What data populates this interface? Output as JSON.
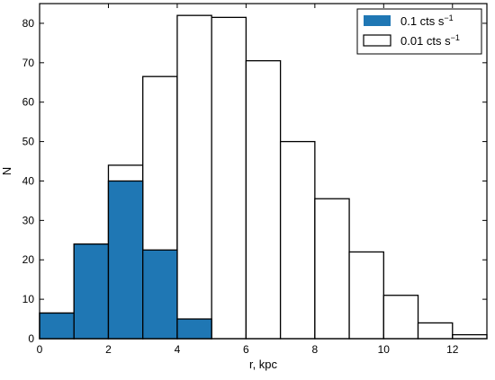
{
  "chart_data": {
    "type": "bar",
    "style": "histogram",
    "xlabel": "r, kpc",
    "ylabel": "N",
    "xlim": [
      0,
      13
    ],
    "ylim": [
      0,
      85
    ],
    "x_ticks": [
      0,
      2,
      4,
      6,
      8,
      10,
      12
    ],
    "x_tick_labels": [
      "0",
      "2",
      "4",
      "6",
      "8",
      "10",
      "12"
    ],
    "y_ticks": [
      0,
      10,
      20,
      30,
      40,
      50,
      60,
      70,
      80
    ],
    "y_tick_labels": [
      "0",
      "10",
      "20",
      "30",
      "40",
      "50",
      "60",
      "70",
      "80"
    ],
    "bin_edges": [
      0,
      1,
      2,
      3,
      4,
      5,
      6,
      7,
      8,
      9,
      10,
      11,
      12,
      13
    ],
    "series": [
      {
        "name": "0.1 cts s⁻¹",
        "fill": "#1f77b4",
        "values": [
          6.5,
          24,
          40,
          22.5,
          5,
          0,
          0,
          0,
          0,
          0,
          0,
          0,
          0
        ]
      },
      {
        "name": "0.01 cts s⁻¹",
        "fill": "none",
        "values": [
          6.5,
          24,
          44,
          66.5,
          82,
          81.5,
          70.5,
          50,
          35.5,
          22,
          11,
          4,
          1
        ]
      }
    ],
    "legend": {
      "position": "top-right",
      "items": [
        {
          "series": 0,
          "label_main": "0.1 cts s",
          "label_sup": "−1"
        },
        {
          "series": 1,
          "label_main": "0.01 cts s",
          "label_sup": "−1"
        }
      ]
    },
    "grid": false
  }
}
